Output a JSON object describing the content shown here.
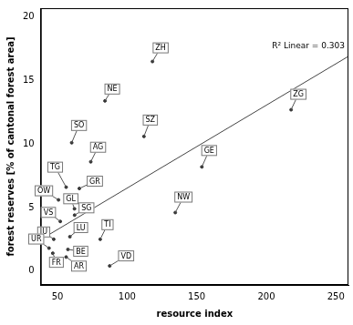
{
  "chart_data": {
    "type": "scatter",
    "x_label": "resource index",
    "y_label": "forest reserves [% of cantonal forest area]",
    "annotation": "R² Linear = 0.303",
    "point_labels": [
      "ZH",
      "NE",
      "SO",
      "SZ",
      "ZG",
      "AG",
      "GE",
      "TG",
      "GR",
      "OW",
      "GL",
      "NW",
      "SG",
      "VS",
      "TI",
      "JU",
      "LU",
      "UR",
      "BE",
      "FR",
      "AR",
      "VD"
    ],
    "x": [
      118.2,
      84.1,
      60.2,
      112.1,
      217.8,
      73.9,
      153.7,
      56.2,
      65.7,
      50.7,
      62.2,
      134.6,
      62.3,
      52.0,
      80.7,
      47.3,
      58.9,
      43.9,
      57.5,
      46.6,
      56.2,
      87.5
    ],
    "values": [
      16.5,
      13.4,
      10.1,
      10.6,
      12.7,
      8.6,
      8.2,
      6.6,
      6.5,
      5.6,
      4.9,
      4.6,
      4.4,
      3.9,
      2.5,
      2.5,
      2.7,
      1.8,
      1.7,
      1.4,
      1.1,
      0.4
    ],
    "color": "#333333",
    "marker": "circle",
    "fit_line": {
      "x": [
        38,
        259
      ],
      "values": [
        2.48,
        16.91
      ],
      "color": "#444444",
      "line_style": "solid"
    },
    "xlim": [
      38,
      259
    ],
    "ylim": [
      -1.1,
      20.7
    ],
    "xticks": [
      50,
      100,
      150,
      200,
      250
    ],
    "yticks": [
      0,
      5,
      10,
      15,
      20
    ],
    "grid": false
  }
}
